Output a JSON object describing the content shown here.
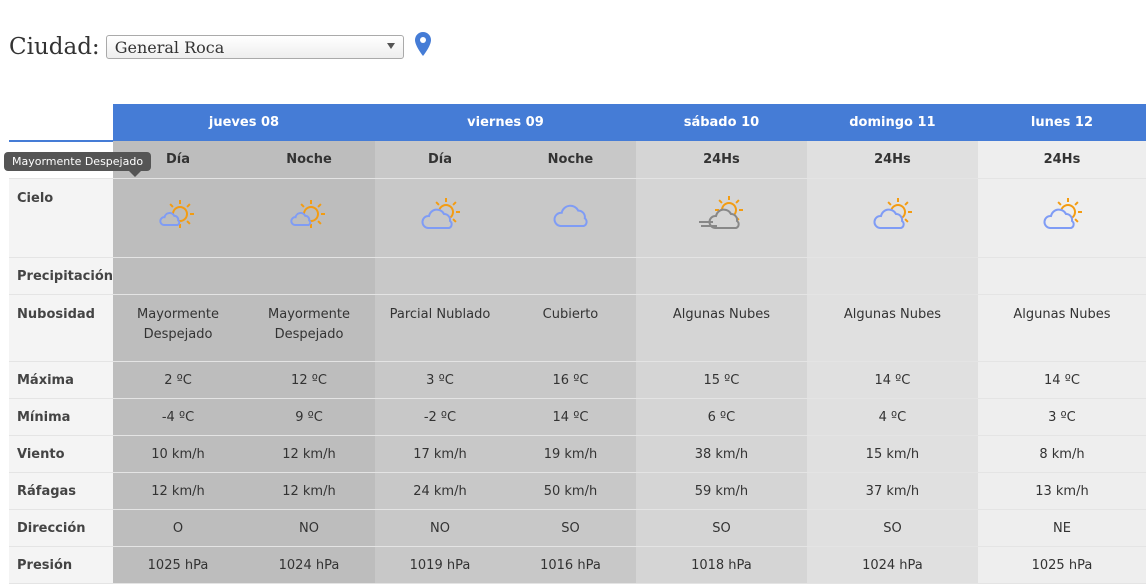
{
  "city": {
    "label": "Ciudad:",
    "selected": "General Roca"
  },
  "days": [
    {
      "label": "jueves 08",
      "span": 2
    },
    {
      "label": "viernes 09",
      "span": 2
    },
    {
      "label": "sábado 10",
      "span": 1
    },
    {
      "label": "domingo 11",
      "span": 1
    },
    {
      "label": "lunes 12",
      "span": 1
    }
  ],
  "periods": [
    "Día",
    "Noche",
    "Día",
    "Noche",
    "24Hs",
    "24Hs",
    "24Hs"
  ],
  "tooltip": "Mayormente Despejado",
  "colors": {
    "header": "#457cd6",
    "sun": "#f39c12",
    "cloud": "#7f9cf5"
  },
  "rows": {
    "cielo": {
      "label": "Cielo",
      "icons": [
        "sun-small-cloud",
        "sun-small-cloud",
        "partly-cloudy",
        "cloudy",
        "cloud-wind-sun",
        "partly-cloudy",
        "partly-cloudy"
      ]
    },
    "precipitacion": {
      "label": "Precipitación",
      "values": [
        "",
        "",
        "",
        "",
        "",
        "",
        ""
      ]
    },
    "nubosidad": {
      "label": "Nubosidad",
      "values": [
        "Mayormente Despejado",
        "Mayormente Despejado",
        "Parcial Nublado",
        "Cubierto",
        "Algunas Nubes",
        "Algunas Nubes",
        "Algunas Nubes"
      ]
    },
    "maxima": {
      "label": "Máxima",
      "values": [
        "2 ºC",
        "12 ºC",
        "3 ºC",
        "16 ºC",
        "15 ºC",
        "14 ºC",
        "14 ºC"
      ]
    },
    "minima": {
      "label": "Mínima",
      "values": [
        "-4 ºC",
        "9 ºC",
        "-2 ºC",
        "14 ºC",
        "6 ºC",
        "4 ºC",
        "3 ºC"
      ]
    },
    "viento": {
      "label": "Viento",
      "values": [
        "10 km/h",
        "12 km/h",
        "17 km/h",
        "19 km/h",
        "38 km/h",
        "15 km/h",
        "8 km/h"
      ]
    },
    "rafagas": {
      "label": "Ráfagas",
      "values": [
        "12 km/h",
        "12 km/h",
        "24 km/h",
        "50 km/h",
        "59 km/h",
        "37 km/h",
        "13 km/h"
      ]
    },
    "direccion": {
      "label": "Dirección",
      "values": [
        "O",
        "NO",
        "NO",
        "SO",
        "SO",
        "SO",
        "NE"
      ]
    },
    "presion": {
      "label": "Presión",
      "values": [
        "1025 hPa",
        "1024 hPa",
        "1019 hPa",
        "1016 hPa",
        "1018 hPa",
        "1024 hPa",
        "1025 hPa"
      ]
    }
  }
}
